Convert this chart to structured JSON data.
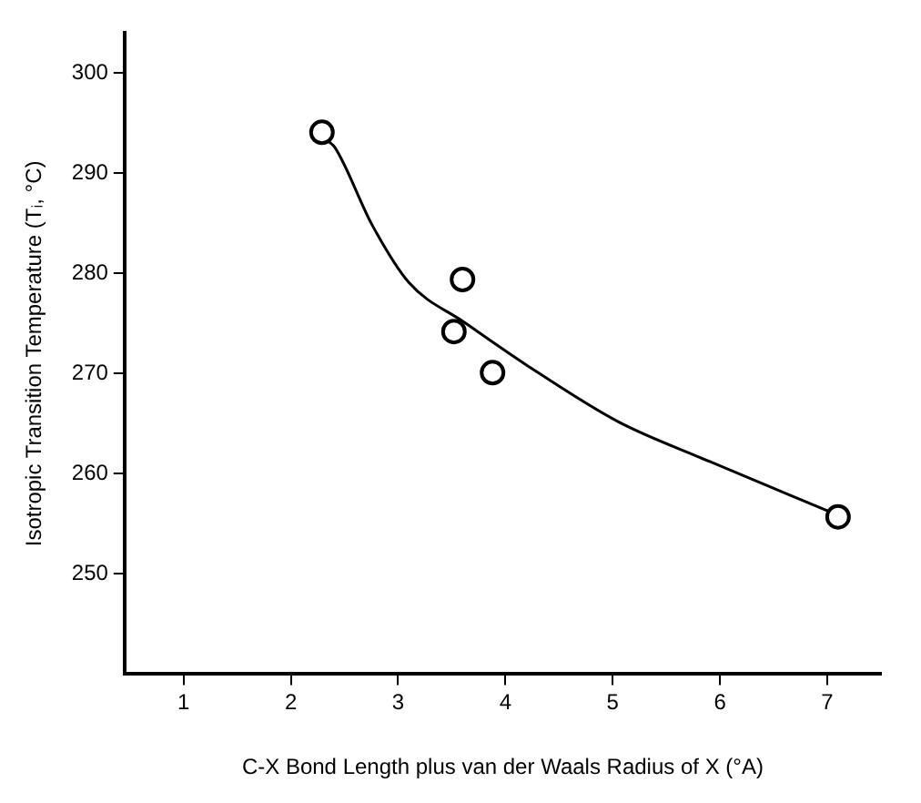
{
  "chart_data": {
    "type": "scatter",
    "xlabel": "C-X Bond Length plus van der Waals Radius of X (°A)",
    "ylabel": "Isotropic Transition Temperature (Tᵢ, °C)",
    "xlim": [
      0.45,
      7.5
    ],
    "xticks": [
      1,
      2,
      3,
      4,
      5,
      6,
      7
    ],
    "ylim": [
      240,
      304
    ],
    "yticks": [
      250,
      260,
      270,
      280,
      290,
      300
    ],
    "grid": false,
    "legend": false,
    "marker": "circle",
    "series": [
      {
        "color": "#000000",
        "x": [
          2.29,
          3.6,
          3.52,
          3.88,
          7.1
        ],
        "values": [
          294.1,
          279.4,
          274.2,
          270.1,
          255.7
        ]
      },
      {
        "type": "line",
        "color": "#000000",
        "marker": "none",
        "line_style": "solid",
        "x": [
          2.35,
          2.41,
          2.76,
          3.1,
          3.62,
          4.19,
          5.05,
          5.91,
          7.07
        ],
        "values": [
          293.2,
          292.6,
          284.8,
          279.1,
          275.1,
          270.9,
          265.2,
          261.2,
          256.0
        ]
      }
    ]
  }
}
